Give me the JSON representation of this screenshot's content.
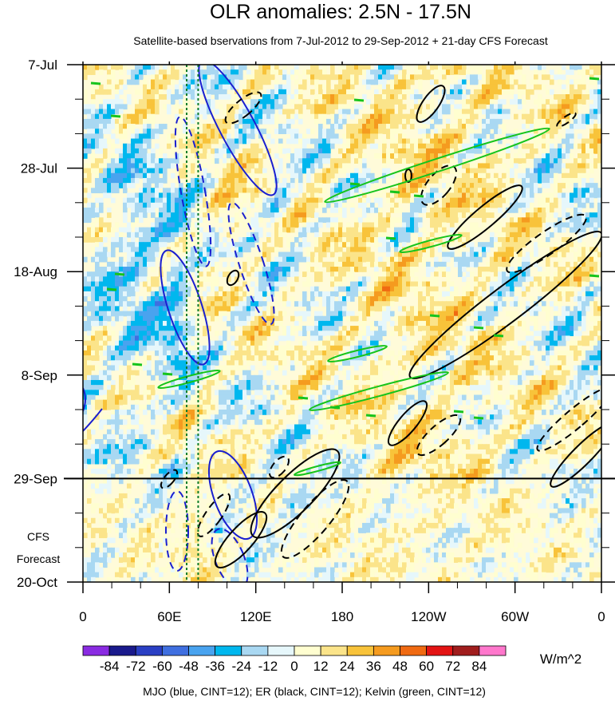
{
  "chart_data": {
    "type": "heatmap",
    "title": "OLR anomalies: 2.5N - 17.5N",
    "subtitle": "Satellite-based bservations from 7-Jul-2012 to 29-Sep-2012 + 21-day CFS Forecast",
    "x_ticks": [
      "0",
      "60E",
      "120E",
      "180",
      "120W",
      "60W",
      "0"
    ],
    "x_tick_lon": [
      0,
      60,
      120,
      180,
      240,
      300,
      360
    ],
    "y_ticks": [
      "7-Jul",
      "28-Jul",
      "18-Aug",
      "8-Sep",
      "29-Sep",
      "20-Oct"
    ],
    "y_tick_day": [
      0,
      21,
      42,
      63,
      84,
      105
    ],
    "xlim": [
      0,
      360
    ],
    "ylim_days": [
      0,
      105
    ],
    "forecast_start_day": 84,
    "forecast_label": [
      "CFS",
      "Forecast"
    ],
    "reference_lon": [
      72,
      80
    ],
    "colorbar": {
      "levels": [
        "-84",
        "-72",
        "-60",
        "-48",
        "-36",
        "-24",
        "-12",
        "0",
        "12",
        "24",
        "36",
        "48",
        "60",
        "72",
        "84"
      ],
      "colors": [
        "#8a2be2",
        "#1a1a8c",
        "#2a3fc4",
        "#3f6fe0",
        "#49a3ef",
        "#00b7ee",
        "#a9d8f2",
        "#e6f7fb",
        "#fffed0",
        "#fbe48a",
        "#f8c33a",
        "#f59b1f",
        "#f06a12",
        "#e31414",
        "#a01d1d",
        "#ff77cc"
      ],
      "units": "W/m^2"
    },
    "footer": "MJO (blue, CINT=12); ER (black, CINT=12); Kelvin (green, CINT=12)",
    "contour_series": [
      {
        "color": "#1a1fd0"
      },
      {
        "color": "#000000"
      },
      {
        "color": "#16c41c"
      }
    ]
  }
}
